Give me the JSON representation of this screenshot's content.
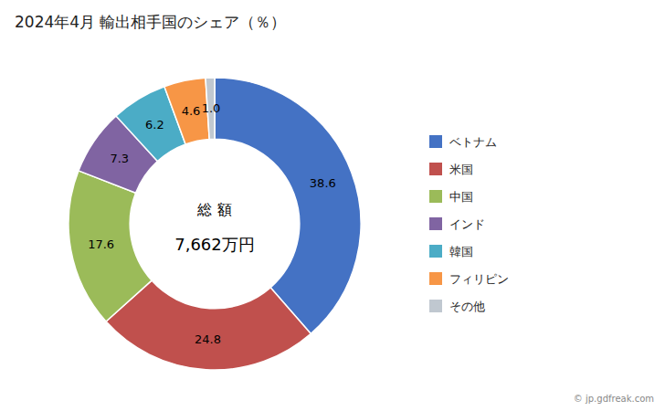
{
  "chart_data": {
    "type": "donut",
    "title": "2024年4月 輸出相手国のシェア（％）",
    "categories": [
      "ベトナム",
      "米国",
      "中国",
      "インド",
      "韓国",
      "フィリピン",
      "その他"
    ],
    "values": [
      38.6,
      24.8,
      17.6,
      7.3,
      6.2,
      4.6,
      1.0
    ],
    "value_labels": [
      "38.6",
      "24.8",
      "17.6",
      "7.3",
      "6.2",
      "4.6",
      "1.0"
    ],
    "colors": [
      "#4472C4",
      "#C0504D",
      "#9BBB59",
      "#8064A2",
      "#4BACC6",
      "#F79646",
      "#C0C8D0"
    ],
    "data_labels": true,
    "legend": "right",
    "annotations": [
      "総 額",
      "7,662万円",
      "© jp.gdfreak.com"
    ]
  }
}
